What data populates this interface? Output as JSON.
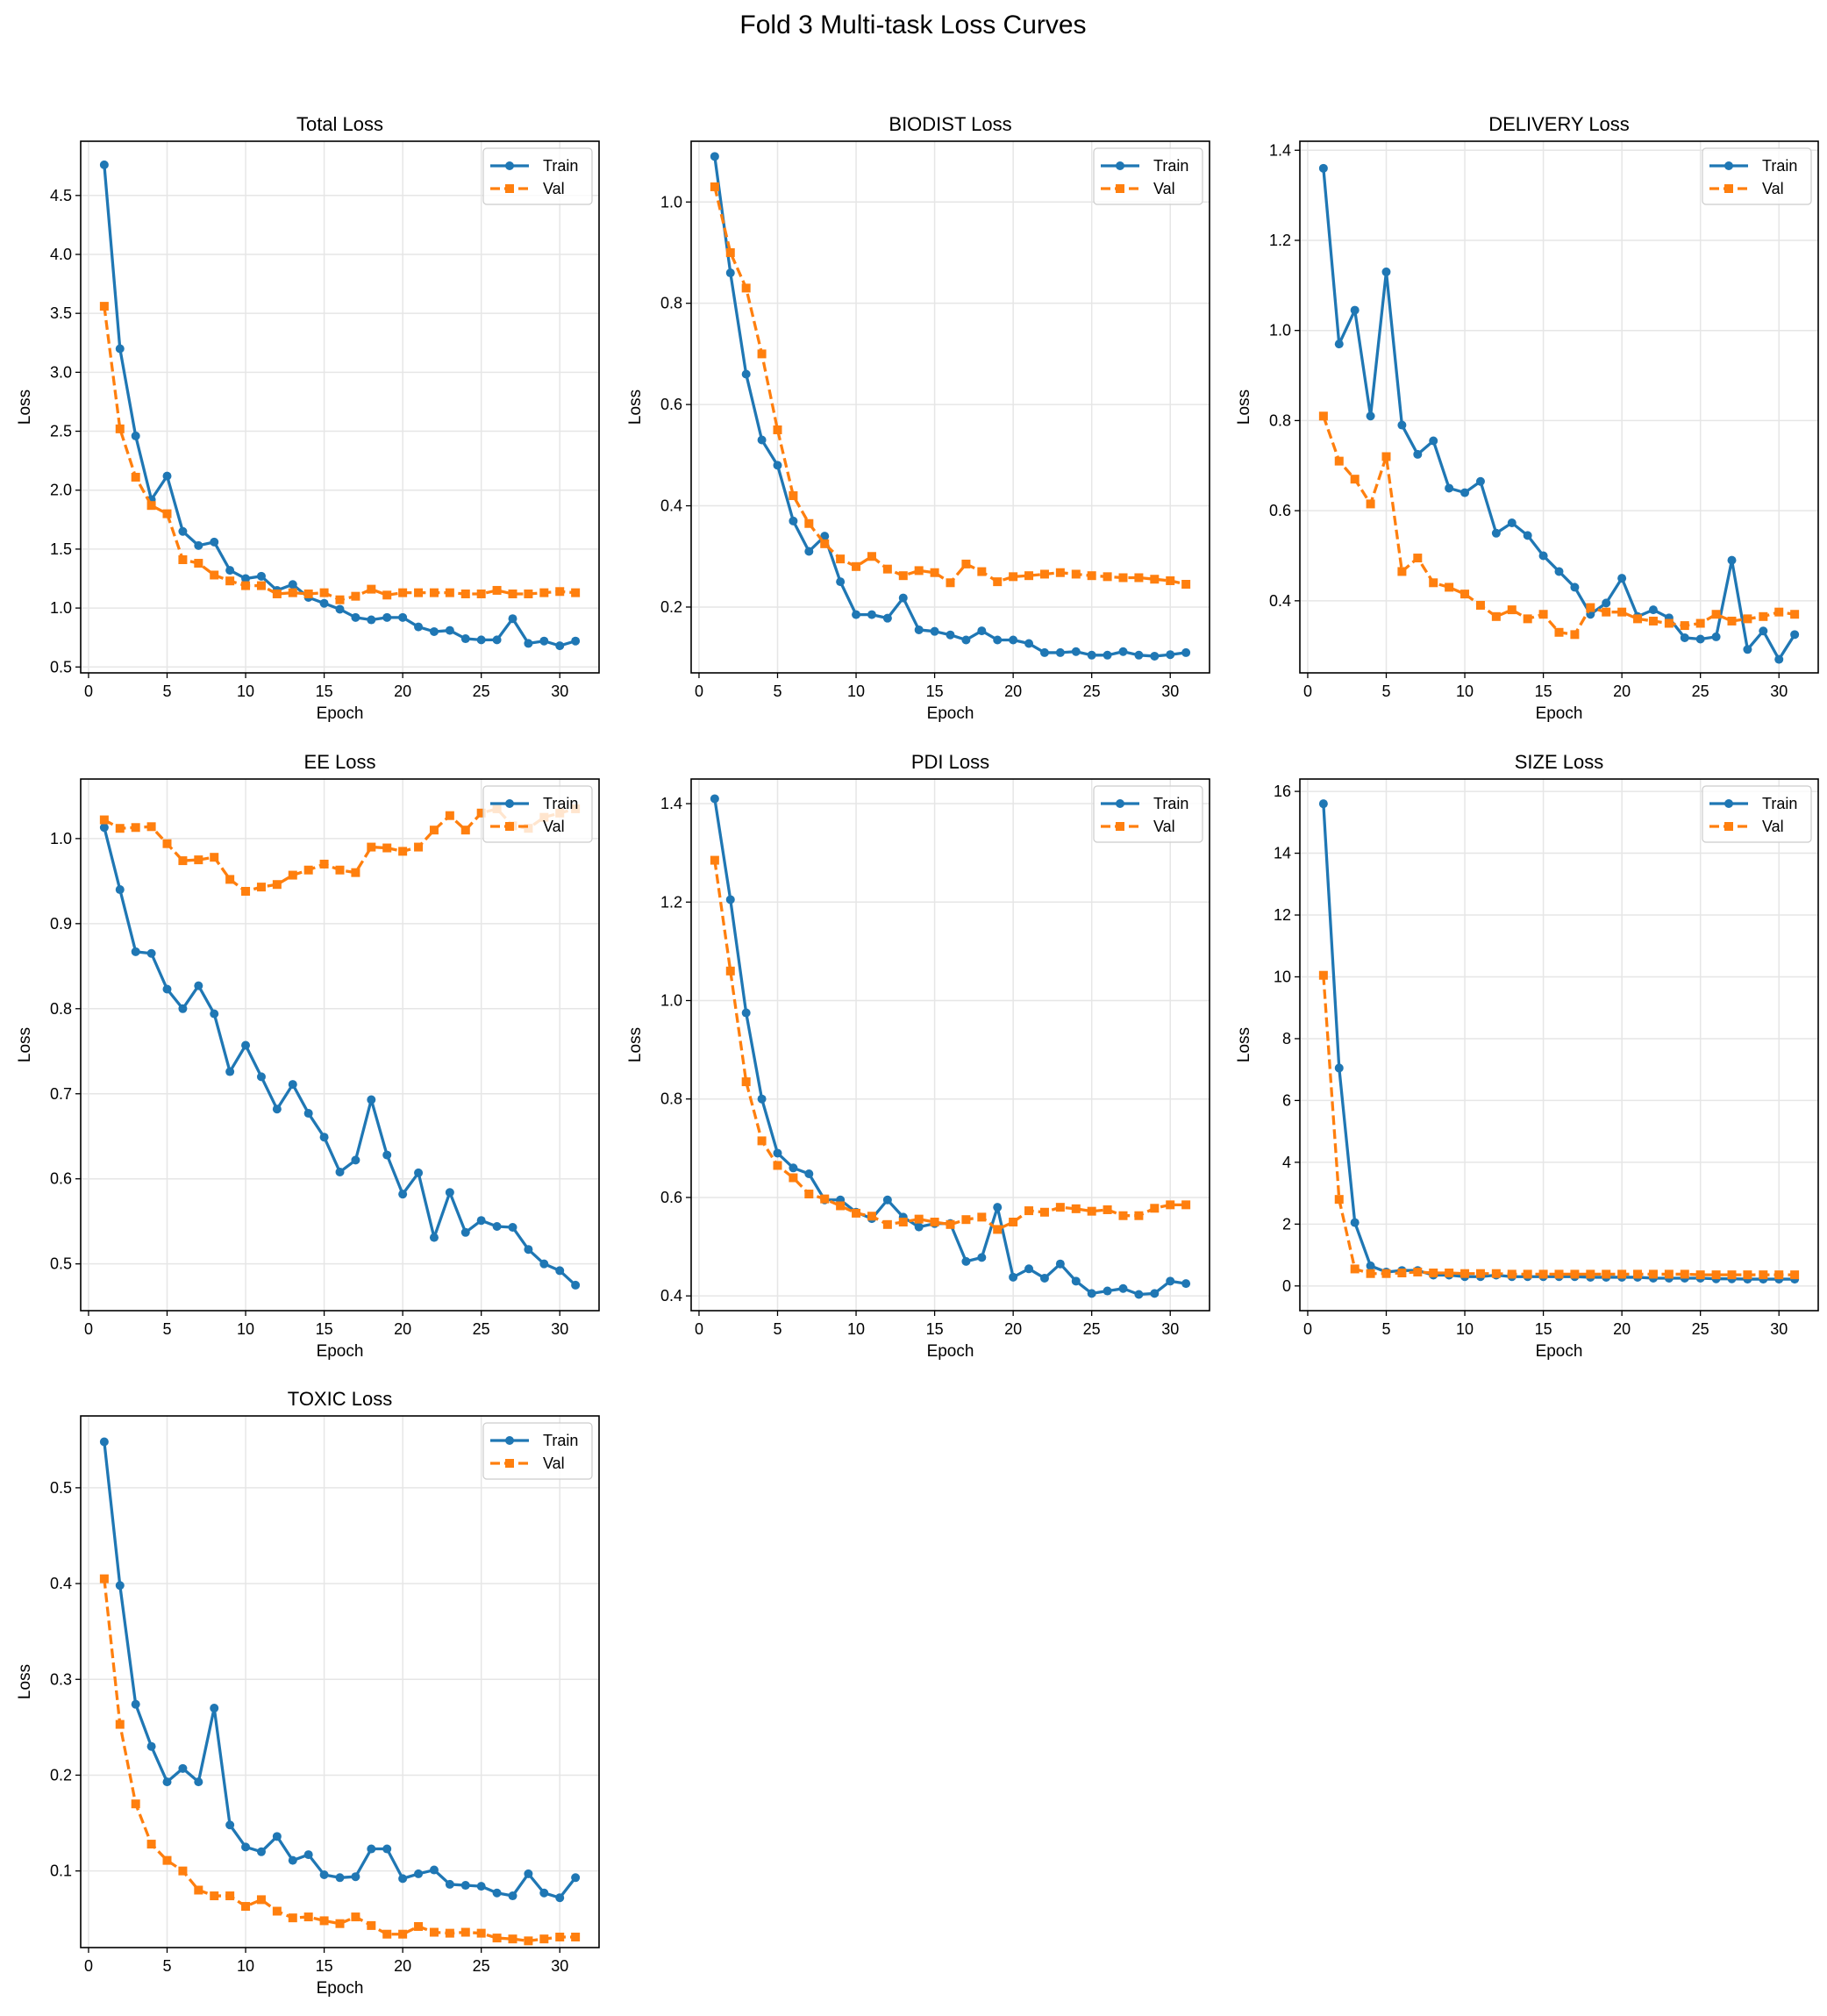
{
  "title": "Fold 3 Multi-task Loss Curves",
  "colors": {
    "train": "#1f77b4",
    "val": "#ff7f0e"
  },
  "chart_data": [
    {
      "type": "line",
      "title": "Total Loss",
      "xlabel": "Epoch",
      "ylabel": "Loss",
      "xlim": [
        -0.5,
        32.5
      ],
      "ylim": [
        0.45,
        4.96
      ],
      "xticks": [
        0,
        5,
        10,
        15,
        20,
        25,
        30
      ],
      "yticks": [
        0.5,
        1.0,
        1.5,
        2.0,
        2.5,
        3.0,
        3.5,
        4.0,
        4.5
      ],
      "ytick_labels": [
        "0.5",
        "1.0",
        "1.5",
        "2.0",
        "2.5",
        "3.0",
        "3.5",
        "4.0",
        "4.5"
      ],
      "grid": true,
      "legend": "upper right",
      "x": [
        1,
        2,
        3,
        4,
        5,
        6,
        7,
        8,
        9,
        10,
        11,
        12,
        13,
        14,
        15,
        16,
        17,
        18,
        19,
        20,
        21,
        22,
        23,
        24,
        25,
        26,
        27,
        28,
        29,
        30,
        31
      ],
      "series": [
        {
          "name": "Train",
          "style": "solid-circle",
          "values": [
            4.76,
            3.2,
            2.46,
            1.92,
            2.12,
            1.65,
            1.53,
            1.56,
            1.32,
            1.25,
            1.27,
            1.15,
            1.2,
            1.09,
            1.04,
            0.99,
            0.92,
            0.9,
            0.92,
            0.92,
            0.84,
            0.8,
            0.81,
            0.74,
            0.73,
            0.73,
            0.91,
            0.7,
            0.72,
            0.68,
            0.72
          ]
        },
        {
          "name": "Val",
          "style": "dashed-square",
          "values": [
            3.56,
            2.52,
            2.11,
            1.87,
            1.8,
            1.41,
            1.38,
            1.28,
            1.23,
            1.19,
            1.19,
            1.12,
            1.13,
            1.12,
            1.13,
            1.07,
            1.1,
            1.16,
            1.11,
            1.13,
            1.13,
            1.13,
            1.13,
            1.12,
            1.12,
            1.15,
            1.12,
            1.12,
            1.13,
            1.14,
            1.13
          ]
        }
      ]
    },
    {
      "type": "line",
      "title": "BIODIST Loss",
      "xlabel": "Epoch",
      "ylabel": "Loss",
      "xlim": [
        -0.5,
        32.5
      ],
      "ylim": [
        0.07,
        1.12
      ],
      "xticks": [
        0,
        5,
        10,
        15,
        20,
        25,
        30
      ],
      "yticks": [
        0.2,
        0.4,
        0.6,
        0.8,
        1.0
      ],
      "ytick_labels": [
        "0.2",
        "0.4",
        "0.6",
        "0.8",
        "1.0"
      ],
      "grid": true,
      "legend": "upper right",
      "x": [
        1,
        2,
        3,
        4,
        5,
        6,
        7,
        8,
        9,
        10,
        11,
        12,
        13,
        14,
        15,
        16,
        17,
        18,
        19,
        20,
        21,
        22,
        23,
        24,
        25,
        26,
        27,
        28,
        29,
        30,
        31
      ],
      "series": [
        {
          "name": "Train",
          "style": "solid-circle",
          "values": [
            1.09,
            0.86,
            0.66,
            0.53,
            0.48,
            0.37,
            0.31,
            0.34,
            0.25,
            0.185,
            0.185,
            0.178,
            0.218,
            0.155,
            0.152,
            0.145,
            0.135,
            0.153,
            0.135,
            0.135,
            0.128,
            0.11,
            0.11,
            0.112,
            0.105,
            0.105,
            0.112,
            0.105,
            0.103,
            0.106,
            0.11
          ]
        },
        {
          "name": "Val",
          "style": "dashed-square",
          "values": [
            1.03,
            0.9,
            0.83,
            0.7,
            0.55,
            0.42,
            0.365,
            0.325,
            0.295,
            0.28,
            0.3,
            0.275,
            0.262,
            0.272,
            0.268,
            0.248,
            0.285,
            0.27,
            0.25,
            0.26,
            0.262,
            0.265,
            0.268,
            0.265,
            0.262,
            0.26,
            0.258,
            0.258,
            0.255,
            0.252,
            0.245
          ]
        }
      ]
    },
    {
      "type": "line",
      "title": "DELIVERY Loss",
      "xlabel": "Epoch",
      "ylabel": "Loss",
      "xlim": [
        -0.5,
        32.5
      ],
      "ylim": [
        0.24,
        1.42
      ],
      "xticks": [
        0,
        5,
        10,
        15,
        20,
        25,
        30
      ],
      "yticks": [
        0.4,
        0.6,
        0.8,
        1.0,
        1.2,
        1.4
      ],
      "ytick_labels": [
        "0.4",
        "0.6",
        "0.8",
        "1.0",
        "1.2",
        "1.4"
      ],
      "grid": true,
      "legend": "upper right",
      "x": [
        1,
        2,
        3,
        4,
        5,
        6,
        7,
        8,
        9,
        10,
        11,
        12,
        13,
        14,
        15,
        16,
        17,
        18,
        19,
        20,
        21,
        22,
        23,
        24,
        25,
        26,
        27,
        28,
        29,
        30,
        31
      ],
      "series": [
        {
          "name": "Train",
          "style": "solid-circle",
          "values": [
            1.36,
            0.97,
            1.045,
            0.81,
            1.13,
            0.79,
            0.725,
            0.755,
            0.65,
            0.64,
            0.665,
            0.55,
            0.573,
            0.545,
            0.5,
            0.465,
            0.43,
            0.37,
            0.395,
            0.45,
            0.365,
            0.38,
            0.362,
            0.318,
            0.315,
            0.32,
            0.49,
            0.292,
            0.333,
            0.27,
            0.325
          ]
        },
        {
          "name": "Val",
          "style": "dashed-square",
          "values": [
            0.81,
            0.71,
            0.67,
            0.615,
            0.72,
            0.465,
            0.495,
            0.44,
            0.43,
            0.415,
            0.39,
            0.365,
            0.38,
            0.36,
            0.37,
            0.33,
            0.325,
            0.385,
            0.375,
            0.375,
            0.36,
            0.355,
            0.35,
            0.345,
            0.35,
            0.37,
            0.355,
            0.36,
            0.365,
            0.375,
            0.37
          ]
        }
      ]
    },
    {
      "type": "line",
      "title": "EE Loss",
      "xlabel": "Epoch",
      "ylabel": "Loss",
      "xlim": [
        -0.5,
        32.5
      ],
      "ylim": [
        0.445,
        1.07
      ],
      "xticks": [
        0,
        5,
        10,
        15,
        20,
        25,
        30
      ],
      "yticks": [
        0.5,
        0.6,
        0.7,
        0.8,
        0.9,
        1.0
      ],
      "ytick_labels": [
        "0.5",
        "0.6",
        "0.7",
        "0.8",
        "0.9",
        "1.0"
      ],
      "grid": true,
      "legend": "upper right",
      "x": [
        1,
        2,
        3,
        4,
        5,
        6,
        7,
        8,
        9,
        10,
        11,
        12,
        13,
        14,
        15,
        16,
        17,
        18,
        19,
        20,
        21,
        22,
        23,
        24,
        25,
        26,
        27,
        28,
        29,
        30,
        31
      ],
      "series": [
        {
          "name": "Train",
          "style": "solid-circle",
          "values": [
            1.013,
            0.94,
            0.867,
            0.865,
            0.823,
            0.8,
            0.827,
            0.794,
            0.726,
            0.757,
            0.72,
            0.682,
            0.711,
            0.677,
            0.649,
            0.608,
            0.622,
            0.693,
            0.628,
            0.582,
            0.607,
            0.531,
            0.584,
            0.537,
            0.551,
            0.544,
            0.543,
            0.517,
            0.5,
            0.492,
            0.475
          ]
        },
        {
          "name": "Val",
          "style": "dashed-square",
          "values": [
            1.022,
            1.012,
            1.013,
            1.014,
            0.994,
            0.974,
            0.975,
            0.978,
            0.952,
            0.938,
            0.943,
            0.946,
            0.957,
            0.963,
            0.97,
            0.963,
            0.96,
            0.99,
            0.989,
            0.985,
            0.99,
            1.01,
            1.027,
            1.01,
            1.03,
            1.035,
            1.015,
            1.012,
            1.025,
            1.03,
            1.035
          ]
        }
      ]
    },
    {
      "type": "line",
      "title": "PDI Loss",
      "xlabel": "Epoch",
      "ylabel": "Loss",
      "xlim": [
        -0.5,
        32.5
      ],
      "ylim": [
        0.37,
        1.45
      ],
      "xticks": [
        0,
        5,
        10,
        15,
        20,
        25,
        30
      ],
      "yticks": [
        0.4,
        0.6,
        0.8,
        1.0,
        1.2,
        1.4
      ],
      "ytick_labels": [
        "0.4",
        "0.6",
        "0.8",
        "1.0",
        "1.2",
        "1.4"
      ],
      "grid": true,
      "legend": "upper right",
      "x": [
        1,
        2,
        3,
        4,
        5,
        6,
        7,
        8,
        9,
        10,
        11,
        12,
        13,
        14,
        15,
        16,
        17,
        18,
        19,
        20,
        21,
        22,
        23,
        24,
        25,
        26,
        27,
        28,
        29,
        30,
        31
      ],
      "series": [
        {
          "name": "Train",
          "style": "solid-circle",
          "values": [
            1.41,
            1.205,
            0.975,
            0.8,
            0.69,
            0.66,
            0.648,
            0.595,
            0.595,
            0.57,
            0.557,
            0.595,
            0.56,
            0.54,
            0.547,
            0.547,
            0.47,
            0.478,
            0.58,
            0.438,
            0.455,
            0.436,
            0.465,
            0.43,
            0.405,
            0.41,
            0.415,
            0.403,
            0.405,
            0.43,
            0.425
          ]
        },
        {
          "name": "Val",
          "style": "dashed-square",
          "values": [
            1.285,
            1.06,
            0.835,
            0.715,
            0.665,
            0.64,
            0.607,
            0.597,
            0.583,
            0.568,
            0.562,
            0.545,
            0.55,
            0.556,
            0.55,
            0.545,
            0.555,
            0.56,
            0.535,
            0.55,
            0.573,
            0.57,
            0.58,
            0.577,
            0.572,
            0.575,
            0.563,
            0.563,
            0.578,
            0.585,
            0.585
          ]
        }
      ]
    },
    {
      "type": "line",
      "title": "SIZE Loss",
      "xlabel": "Epoch",
      "ylabel": "Loss",
      "xlim": [
        -0.5,
        32.5
      ],
      "ylim": [
        -0.8,
        16.4
      ],
      "xticks": [
        0,
        5,
        10,
        15,
        20,
        25,
        30
      ],
      "yticks": [
        0,
        2,
        4,
        6,
        8,
        10,
        12,
        14,
        16
      ],
      "ytick_labels": [
        "0",
        "2",
        "4",
        "6",
        "8",
        "10",
        "12",
        "14",
        "16"
      ],
      "grid": true,
      "legend": "upper right",
      "x": [
        1,
        2,
        3,
        4,
        5,
        6,
        7,
        8,
        9,
        10,
        11,
        12,
        13,
        14,
        15,
        16,
        17,
        18,
        19,
        20,
        21,
        22,
        23,
        24,
        25,
        26,
        27,
        28,
        29,
        30,
        31
      ],
      "series": [
        {
          "name": "Train",
          "style": "solid-circle",
          "values": [
            15.6,
            7.05,
            2.05,
            0.65,
            0.45,
            0.5,
            0.5,
            0.35,
            0.35,
            0.3,
            0.3,
            0.35,
            0.3,
            0.3,
            0.3,
            0.3,
            0.3,
            0.28,
            0.28,
            0.28,
            0.28,
            0.25,
            0.25,
            0.25,
            0.25,
            0.23,
            0.23,
            0.22,
            0.22,
            0.22,
            0.22
          ]
        },
        {
          "name": "Val",
          "style": "dashed-square",
          "values": [
            10.05,
            2.8,
            0.55,
            0.4,
            0.4,
            0.42,
            0.45,
            0.42,
            0.42,
            0.4,
            0.4,
            0.4,
            0.38,
            0.38,
            0.38,
            0.38,
            0.38,
            0.38,
            0.38,
            0.38,
            0.38,
            0.38,
            0.38,
            0.38,
            0.36,
            0.36,
            0.36,
            0.36,
            0.36,
            0.36,
            0.36
          ]
        }
      ]
    },
    {
      "type": "line",
      "title": "TOXIC Loss",
      "xlabel": "Epoch",
      "ylabel": "Loss",
      "xlim": [
        -0.5,
        32.5
      ],
      "ylim": [
        0.02,
        0.575
      ],
      "xticks": [
        0,
        5,
        10,
        15,
        20,
        25,
        30
      ],
      "yticks": [
        0.1,
        0.2,
        0.3,
        0.4,
        0.5
      ],
      "ytick_labels": [
        "0.1",
        "0.2",
        "0.3",
        "0.4",
        "0.5"
      ],
      "grid": true,
      "legend": "upper right",
      "x": [
        1,
        2,
        3,
        4,
        5,
        6,
        7,
        8,
        9,
        10,
        11,
        12,
        13,
        14,
        15,
        16,
        17,
        18,
        19,
        20,
        21,
        22,
        23,
        24,
        25,
        26,
        27,
        28,
        29,
        30,
        31
      ],
      "series": [
        {
          "name": "Train",
          "style": "solid-circle",
          "values": [
            0.548,
            0.398,
            0.274,
            0.23,
            0.193,
            0.207,
            0.193,
            0.27,
            0.148,
            0.125,
            0.12,
            0.136,
            0.111,
            0.117,
            0.096,
            0.093,
            0.094,
            0.123,
            0.123,
            0.092,
            0.097,
            0.101,
            0.086,
            0.085,
            0.084,
            0.077,
            0.074,
            0.097,
            0.077,
            0.072,
            0.093
          ]
        },
        {
          "name": "Val",
          "style": "dashed-square",
          "values": [
            0.405,
            0.253,
            0.17,
            0.128,
            0.111,
            0.1,
            0.08,
            0.074,
            0.074,
            0.063,
            0.07,
            0.058,
            0.051,
            0.052,
            0.048,
            0.045,
            0.052,
            0.043,
            0.034,
            0.034,
            0.042,
            0.036,
            0.035,
            0.036,
            0.035,
            0.03,
            0.029,
            0.027,
            0.029,
            0.031,
            0.031
          ]
        }
      ]
    }
  ]
}
